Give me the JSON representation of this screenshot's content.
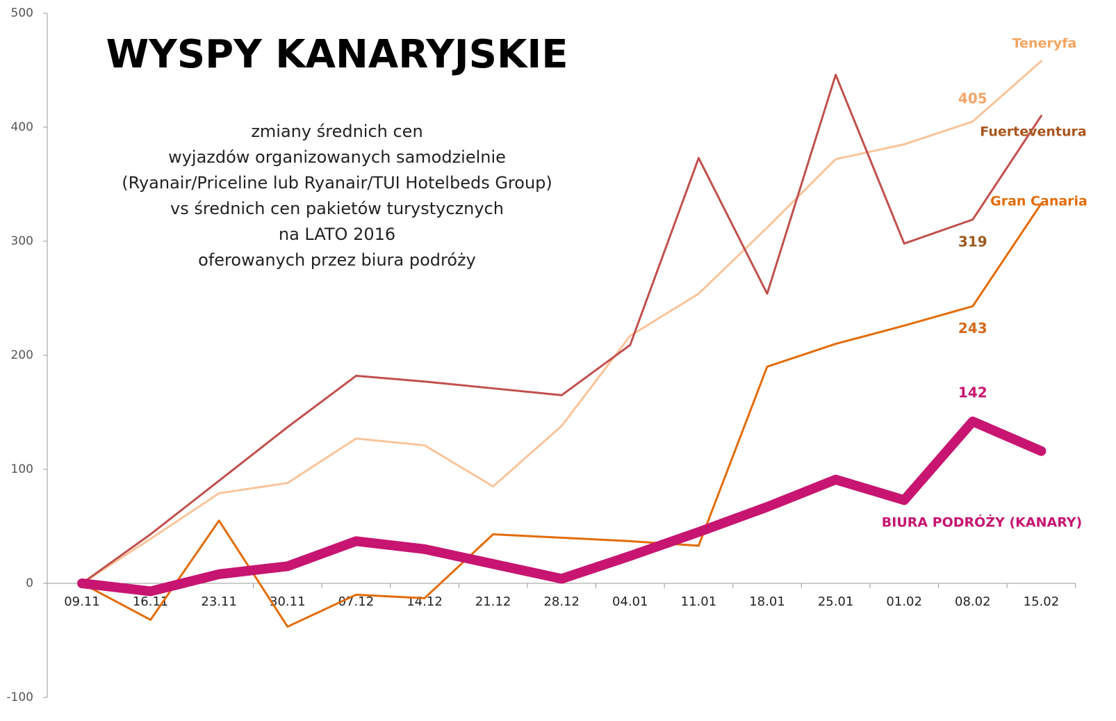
{
  "chart_data": {
    "type": "line",
    "title": "WYSPY KANARYJSKIE",
    "subtitle": [
      "zmiany średnich cen",
      "wyjazdów organizowanych samodzielnie",
      "(Ryanair/Priceline lub Ryanair/TUI Hotelbeds Group)",
      "vs średnich cen pakietów turystycznych",
      "na LATO 2016",
      "oferowanych przez biura podróży"
    ],
    "categories": [
      "09.11",
      "16.11",
      "23.11",
      "30.11",
      "07.12",
      "14.12",
      "21.12",
      "28.12",
      "04.01",
      "11.01",
      "18.01",
      "25.01",
      "01.02",
      "08.02",
      "15.02"
    ],
    "series": [
      {
        "name": "Teneryfa",
        "color": "#f9c49a",
        "values": [
          0,
          39,
          79,
          88,
          127,
          121,
          85,
          138,
          217,
          254,
          312,
          372,
          385,
          405,
          458
        ]
      },
      {
        "name": "Fuerteventura",
        "color": "#c0504d",
        "values": [
          0,
          43,
          90,
          137,
          182,
          177,
          171,
          165,
          209,
          373,
          254,
          446,
          298,
          319,
          410
        ]
      },
      {
        "name": "Gran Canaria",
        "color": "#e36c09",
        "values": [
          0,
          -32,
          55,
          -38,
          -10,
          -13,
          43,
          40,
          37,
          33,
          190,
          210,
          226,
          243,
          333
        ]
      },
      {
        "name": "BIURA PODRÓŻY (KANARY)",
        "color": "#c71571",
        "values": [
          0,
          -7,
          8,
          15,
          37,
          30,
          17,
          4,
          24,
          45,
          67,
          91,
          73,
          142,
          116
        ]
      }
    ],
    "ylim": [
      -100,
      500
    ],
    "yticks": [
      -100,
      0,
      100,
      200,
      300,
      400,
      500
    ]
  }
}
